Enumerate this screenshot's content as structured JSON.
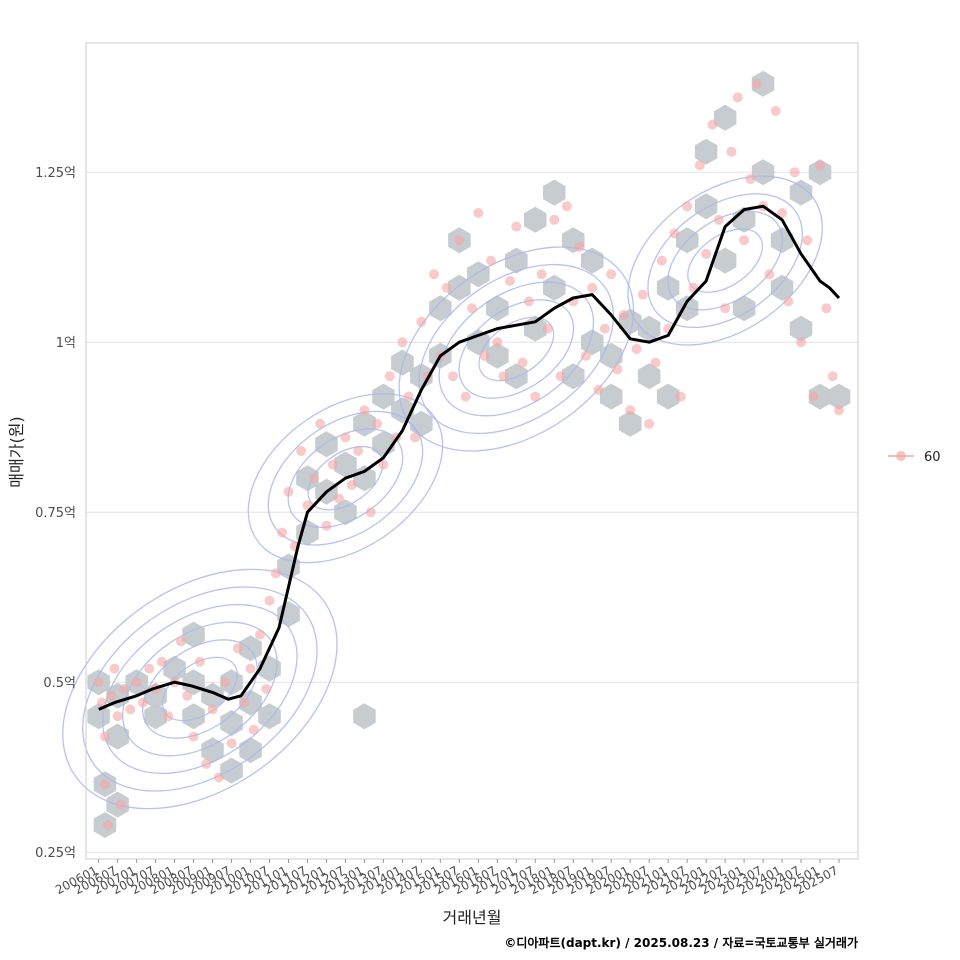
{
  "chart_data": {
    "type": "scatter",
    "xlabel": "거래년월",
    "ylabel": "매매가(원)",
    "caption": "©디아파트(dapt.kr) / 2025.08.23 / 자료=국토교통부 실거래가",
    "legend": {
      "position": "right",
      "entries": [
        "60"
      ]
    },
    "y_axis": {
      "unit": "억",
      "range": [
        0.24,
        1.44
      ],
      "ticks": [
        0.25,
        0.5,
        0.75,
        1.0,
        1.25
      ],
      "tick_labels": [
        "0.25억",
        "0.5억",
        "0.75억",
        "1억",
        "1.25억"
      ],
      "grid": true
    },
    "x_axis": {
      "range": [
        "2005-09",
        "2026-01"
      ],
      "tick_labels": [
        "200601",
        "200607",
        "200701",
        "200707",
        "200801",
        "200807",
        "200901",
        "200907",
        "201001",
        "201007",
        "201101",
        "201107",
        "201201",
        "201207",
        "201301",
        "201307",
        "201401",
        "201407",
        "201501",
        "201507",
        "201601",
        "201607",
        "201701",
        "201707",
        "201801",
        "201807",
        "201901",
        "201907",
        "202001",
        "202007",
        "202101",
        "202107",
        "202201",
        "202207",
        "202301",
        "202307",
        "202401",
        "202407",
        "202501",
        "202507"
      ],
      "grid": false
    },
    "colors": {
      "points": "#f4a6a6",
      "hex_bins": "#c4c9cd",
      "density_contours": "#aab8ec",
      "trend_line": "#000000"
    },
    "series": [
      {
        "name": "60",
        "kind": "scatter",
        "points": [
          {
            "x": "2006-01",
            "y": 0.5
          },
          {
            "x": "2006-02",
            "y": 0.47
          },
          {
            "x": "2006-03",
            "y": 0.42
          },
          {
            "x": "2006-03",
            "y": 0.35
          },
          {
            "x": "2006-04",
            "y": 0.29
          },
          {
            "x": "2006-05",
            "y": 0.48
          },
          {
            "x": "2006-06",
            "y": 0.52
          },
          {
            "x": "2006-07",
            "y": 0.45
          },
          {
            "x": "2006-08",
            "y": 0.32
          },
          {
            "x": "2006-09",
            "y": 0.49
          },
          {
            "x": "2006-11",
            "y": 0.46
          },
          {
            "x": "2007-01",
            "y": 0.5
          },
          {
            "x": "2007-03",
            "y": 0.47
          },
          {
            "x": "2007-05",
            "y": 0.52
          },
          {
            "x": "2007-07",
            "y": 0.49
          },
          {
            "x": "2007-09",
            "y": 0.53
          },
          {
            "x": "2007-11",
            "y": 0.45
          },
          {
            "x": "2008-01",
            "y": 0.5
          },
          {
            "x": "2008-03",
            "y": 0.56
          },
          {
            "x": "2008-05",
            "y": 0.48
          },
          {
            "x": "2008-07",
            "y": 0.42
          },
          {
            "x": "2008-09",
            "y": 0.53
          },
          {
            "x": "2008-11",
            "y": 0.38
          },
          {
            "x": "2009-01",
            "y": 0.46
          },
          {
            "x": "2009-03",
            "y": 0.36
          },
          {
            "x": "2009-05",
            "y": 0.5
          },
          {
            "x": "2009-07",
            "y": 0.41
          },
          {
            "x": "2009-09",
            "y": 0.55
          },
          {
            "x": "2009-11",
            "y": 0.47
          },
          {
            "x": "2010-01",
            "y": 0.52
          },
          {
            "x": "2010-02",
            "y": 0.43
          },
          {
            "x": "2010-04",
            "y": 0.57
          },
          {
            "x": "2010-06",
            "y": 0.49
          },
          {
            "x": "2010-07",
            "y": 0.62
          },
          {
            "x": "2010-09",
            "y": 0.66
          },
          {
            "x": "2010-11",
            "y": 0.72
          },
          {
            "x": "2011-01",
            "y": 0.78
          },
          {
            "x": "2011-03",
            "y": 0.7
          },
          {
            "x": "2011-05",
            "y": 0.84
          },
          {
            "x": "2011-07",
            "y": 0.76
          },
          {
            "x": "2011-09",
            "y": 0.8
          },
          {
            "x": "2011-11",
            "y": 0.88
          },
          {
            "x": "2012-01",
            "y": 0.73
          },
          {
            "x": "2012-03",
            "y": 0.82
          },
          {
            "x": "2012-05",
            "y": 0.77
          },
          {
            "x": "2012-07",
            "y": 0.86
          },
          {
            "x": "2012-09",
            "y": 0.79
          },
          {
            "x": "2012-11",
            "y": 0.84
          },
          {
            "x": "2013-01",
            "y": 0.9
          },
          {
            "x": "2013-03",
            "y": 0.75
          },
          {
            "x": "2013-05",
            "y": 0.88
          },
          {
            "x": "2013-07",
            "y": 0.82
          },
          {
            "x": "2013-09",
            "y": 0.95
          },
          {
            "x": "2013-11",
            "y": 0.86
          },
          {
            "x": "2014-01",
            "y": 1.0
          },
          {
            "x": "2014-03",
            "y": 0.92
          },
          {
            "x": "2014-05",
            "y": 0.86
          },
          {
            "x": "2014-07",
            "y": 1.03
          },
          {
            "x": "2014-09",
            "y": 0.95
          },
          {
            "x": "2014-11",
            "y": 1.1
          },
          {
            "x": "2015-01",
            "y": 0.98
          },
          {
            "x": "2015-03",
            "y": 1.08
          },
          {
            "x": "2015-05",
            "y": 0.95
          },
          {
            "x": "2015-07",
            "y": 1.15
          },
          {
            "x": "2015-09",
            "y": 0.92
          },
          {
            "x": "2015-11",
            "y": 1.05
          },
          {
            "x": "2016-01",
            "y": 1.19
          },
          {
            "x": "2016-03",
            "y": 0.98
          },
          {
            "x": "2016-05",
            "y": 1.12
          },
          {
            "x": "2016-07",
            "y": 1.0
          },
          {
            "x": "2016-09",
            "y": 0.95
          },
          {
            "x": "2016-11",
            "y": 1.09
          },
          {
            "x": "2017-01",
            "y": 1.17
          },
          {
            "x": "2017-03",
            "y": 0.97
          },
          {
            "x": "2017-05",
            "y": 1.06
          },
          {
            "x": "2017-07",
            "y": 0.92
          },
          {
            "x": "2017-09",
            "y": 1.1
          },
          {
            "x": "2017-11",
            "y": 1.02
          },
          {
            "x": "2018-01",
            "y": 1.18
          },
          {
            "x": "2018-03",
            "y": 0.95
          },
          {
            "x": "2018-05",
            "y": 1.2
          },
          {
            "x": "2018-07",
            "y": 1.06
          },
          {
            "x": "2018-09",
            "y": 1.14
          },
          {
            "x": "2018-11",
            "y": 0.98
          },
          {
            "x": "2019-01",
            "y": 1.08
          },
          {
            "x": "2019-03",
            "y": 0.93
          },
          {
            "x": "2019-05",
            "y": 1.02
          },
          {
            "x": "2019-07",
            "y": 1.1
          },
          {
            "x": "2019-09",
            "y": 0.96
          },
          {
            "x": "2019-11",
            "y": 1.04
          },
          {
            "x": "2020-01",
            "y": 0.9
          },
          {
            "x": "2020-03",
            "y": 0.99
          },
          {
            "x": "2020-05",
            "y": 1.07
          },
          {
            "x": "2020-07",
            "y": 0.88
          },
          {
            "x": "2020-09",
            "y": 0.97
          },
          {
            "x": "2020-11",
            "y": 1.12
          },
          {
            "x": "2021-01",
            "y": 1.02
          },
          {
            "x": "2021-03",
            "y": 1.16
          },
          {
            "x": "2021-05",
            "y": 0.92
          },
          {
            "x": "2021-07",
            "y": 1.2
          },
          {
            "x": "2021-09",
            "y": 1.08
          },
          {
            "x": "2021-11",
            "y": 1.26
          },
          {
            "x": "2022-01",
            "y": 1.13
          },
          {
            "x": "2022-03",
            "y": 1.32
          },
          {
            "x": "2022-05",
            "y": 1.18
          },
          {
            "x": "2022-07",
            "y": 1.05
          },
          {
            "x": "2022-09",
            "y": 1.28
          },
          {
            "x": "2022-11",
            "y": 1.36
          },
          {
            "x": "2023-01",
            "y": 1.15
          },
          {
            "x": "2023-03",
            "y": 1.24
          },
          {
            "x": "2023-05",
            "y": 1.38
          },
          {
            "x": "2023-07",
            "y": 1.2
          },
          {
            "x": "2023-09",
            "y": 1.1
          },
          {
            "x": "2023-11",
            "y": 1.34
          },
          {
            "x": "2024-01",
            "y": 1.19
          },
          {
            "x": "2024-03",
            "y": 1.06
          },
          {
            "x": "2024-05",
            "y": 1.25
          },
          {
            "x": "2024-07",
            "y": 1.0
          },
          {
            "x": "2024-09",
            "y": 1.15
          },
          {
            "x": "2024-11",
            "y": 0.92
          },
          {
            "x": "2025-01",
            "y": 1.26
          },
          {
            "x": "2025-03",
            "y": 1.05
          },
          {
            "x": "2025-05",
            "y": 0.95
          },
          {
            "x": "2025-07",
            "y": 0.9
          }
        ]
      },
      {
        "kind": "line",
        "points": [
          {
            "x": "2006-01",
            "y": 0.46
          },
          {
            "x": "2006-06",
            "y": 0.47
          },
          {
            "x": "2007-01",
            "y": 0.48
          },
          {
            "x": "2007-06",
            "y": 0.49
          },
          {
            "x": "2008-01",
            "y": 0.5
          },
          {
            "x": "2008-06",
            "y": 0.495
          },
          {
            "x": "2009-01",
            "y": 0.485
          },
          {
            "x": "2009-06",
            "y": 0.475
          },
          {
            "x": "2009-10",
            "y": 0.48
          },
          {
            "x": "2010-04",
            "y": 0.52
          },
          {
            "x": "2010-10",
            "y": 0.58
          },
          {
            "x": "2011-01",
            "y": 0.64
          },
          {
            "x": "2011-04",
            "y": 0.7
          },
          {
            "x": "2011-07",
            "y": 0.75
          },
          {
            "x": "2012-01",
            "y": 0.78
          },
          {
            "x": "2012-07",
            "y": 0.8
          },
          {
            "x": "2013-01",
            "y": 0.81
          },
          {
            "x": "2013-07",
            "y": 0.83
          },
          {
            "x": "2014-01",
            "y": 0.87
          },
          {
            "x": "2014-07",
            "y": 0.93
          },
          {
            "x": "2015-01",
            "y": 0.98
          },
          {
            "x": "2015-07",
            "y": 1.0
          },
          {
            "x": "2016-01",
            "y": 1.01
          },
          {
            "x": "2016-07",
            "y": 1.02
          },
          {
            "x": "2017-01",
            "y": 1.025
          },
          {
            "x": "2017-07",
            "y": 1.03
          },
          {
            "x": "2018-01",
            "y": 1.05
          },
          {
            "x": "2018-07",
            "y": 1.065
          },
          {
            "x": "2019-01",
            "y": 1.07
          },
          {
            "x": "2019-07",
            "y": 1.04
          },
          {
            "x": "2020-01",
            "y": 1.005
          },
          {
            "x": "2020-07",
            "y": 1.0
          },
          {
            "x": "2021-01",
            "y": 1.01
          },
          {
            "x": "2021-07",
            "y": 1.06
          },
          {
            "x": "2022-01",
            "y": 1.09
          },
          {
            "x": "2022-07",
            "y": 1.17
          },
          {
            "x": "2023-01",
            "y": 1.195
          },
          {
            "x": "2023-07",
            "y": 1.2
          },
          {
            "x": "2024-01",
            "y": 1.18
          },
          {
            "x": "2024-07",
            "y": 1.13
          },
          {
            "x": "2025-01",
            "y": 1.09
          },
          {
            "x": "2025-04",
            "y": 1.08
          },
          {
            "x": "2025-07",
            "y": 1.065
          }
        ]
      }
    ],
    "hex_bins": [
      {
        "x": "2006-01",
        "y": 0.5
      },
      {
        "x": "2006-01",
        "y": 0.45
      },
      {
        "x": "2006-07",
        "y": 0.48
      },
      {
        "x": "2006-07",
        "y": 0.42
      },
      {
        "x": "2006-03",
        "y": 0.35
      },
      {
        "x": "2006-07",
        "y": 0.32
      },
      {
        "x": "2006-03",
        "y": 0.29
      },
      {
        "x": "2007-01",
        "y": 0.5
      },
      {
        "x": "2007-07",
        "y": 0.48
      },
      {
        "x": "2007-07",
        "y": 0.45
      },
      {
        "x": "2008-01",
        "y": 0.52
      },
      {
        "x": "2008-07",
        "y": 0.5
      },
      {
        "x": "2008-07",
        "y": 0.45
      },
      {
        "x": "2008-07",
        "y": 0.57
      },
      {
        "x": "2009-01",
        "y": 0.48
      },
      {
        "x": "2009-01",
        "y": 0.4
      },
      {
        "x": "2009-07",
        "y": 0.5
      },
      {
        "x": "2009-07",
        "y": 0.44
      },
      {
        "x": "2009-07",
        "y": 0.37
      },
      {
        "x": "2010-01",
        "y": 0.55
      },
      {
        "x": "2010-01",
        "y": 0.47
      },
      {
        "x": "2010-01",
        "y": 0.4
      },
      {
        "x": "2010-07",
        "y": 0.52
      },
      {
        "x": "2010-07",
        "y": 0.45
      },
      {
        "x": "2011-01",
        "y": 0.6
      },
      {
        "x": "2011-01",
        "y": 0.67
      },
      {
        "x": "2011-07",
        "y": 0.72
      },
      {
        "x": "2011-07",
        "y": 0.8
      },
      {
        "x": "2012-01",
        "y": 0.78
      },
      {
        "x": "2012-01",
        "y": 0.85
      },
      {
        "x": "2012-07",
        "y": 0.75
      },
      {
        "x": "2012-07",
        "y": 0.82
      },
      {
        "x": "2013-01",
        "y": 0.8
      },
      {
        "x": "2013-01",
        "y": 0.88
      },
      {
        "x": "2013-07",
        "y": 0.92
      },
      {
        "x": "2013-07",
        "y": 0.85
      },
      {
        "x": "2013-01",
        "y": 0.45
      },
      {
        "x": "2014-01",
        "y": 0.9
      },
      {
        "x": "2014-01",
        "y": 0.97
      },
      {
        "x": "2014-07",
        "y": 0.95
      },
      {
        "x": "2014-07",
        "y": 0.88
      },
      {
        "x": "2015-01",
        "y": 0.98
      },
      {
        "x": "2015-01",
        "y": 1.05
      },
      {
        "x": "2015-07",
        "y": 1.08
      },
      {
        "x": "2015-07",
        "y": 1.15
      },
      {
        "x": "2016-01",
        "y": 1.0
      },
      {
        "x": "2016-01",
        "y": 1.1
      },
      {
        "x": "2016-07",
        "y": 0.98
      },
      {
        "x": "2016-07",
        "y": 1.05
      },
      {
        "x": "2017-01",
        "y": 0.95
      },
      {
        "x": "2017-01",
        "y": 1.12
      },
      {
        "x": "2017-07",
        "y": 1.18
      },
      {
        "x": "2017-07",
        "y": 1.02
      },
      {
        "x": "2018-01",
        "y": 1.22
      },
      {
        "x": "2018-01",
        "y": 1.08
      },
      {
        "x": "2018-07",
        "y": 1.15
      },
      {
        "x": "2018-07",
        "y": 0.95
      },
      {
        "x": "2019-01",
        "y": 1.0
      },
      {
        "x": "2019-01",
        "y": 1.12
      },
      {
        "x": "2019-07",
        "y": 0.98
      },
      {
        "x": "2019-07",
        "y": 0.92
      },
      {
        "x": "2020-01",
        "y": 1.03
      },
      {
        "x": "2020-01",
        "y": 0.88
      },
      {
        "x": "2020-07",
        "y": 0.95
      },
      {
        "x": "2020-07",
        "y": 1.02
      },
      {
        "x": "2021-01",
        "y": 1.08
      },
      {
        "x": "2021-01",
        "y": 0.92
      },
      {
        "x": "2021-07",
        "y": 1.15
      },
      {
        "x": "2021-07",
        "y": 1.05
      },
      {
        "x": "2022-01",
        "y": 1.2
      },
      {
        "x": "2022-01",
        "y": 1.28
      },
      {
        "x": "2022-07",
        "y": 1.33
      },
      {
        "x": "2022-07",
        "y": 1.12
      },
      {
        "x": "2023-01",
        "y": 1.18
      },
      {
        "x": "2023-01",
        "y": 1.05
      },
      {
        "x": "2023-07",
        "y": 1.38
      },
      {
        "x": "2023-07",
        "y": 1.25
      },
      {
        "x": "2024-01",
        "y": 1.15
      },
      {
        "x": "2024-01",
        "y": 1.08
      },
      {
        "x": "2024-07",
        "y": 1.22
      },
      {
        "x": "2024-07",
        "y": 1.02
      },
      {
        "x": "2025-01",
        "y": 1.25
      },
      {
        "x": "2025-01",
        "y": 0.92
      },
      {
        "x": "2025-07",
        "y": 0.92
      }
    ],
    "density_contours": [
      {
        "center": {
          "x": "2008-09",
          "y": 0.49
        },
        "levels": 6
      },
      {
        "center": {
          "x": "2017-01",
          "y": 0.99
        },
        "levels": 5
      },
      {
        "center": {
          "x": "2022-07",
          "y": 1.12
        },
        "levels": 4
      },
      {
        "center": {
          "x": "2012-07",
          "y": 0.8
        },
        "levels": 4
      }
    ]
  }
}
